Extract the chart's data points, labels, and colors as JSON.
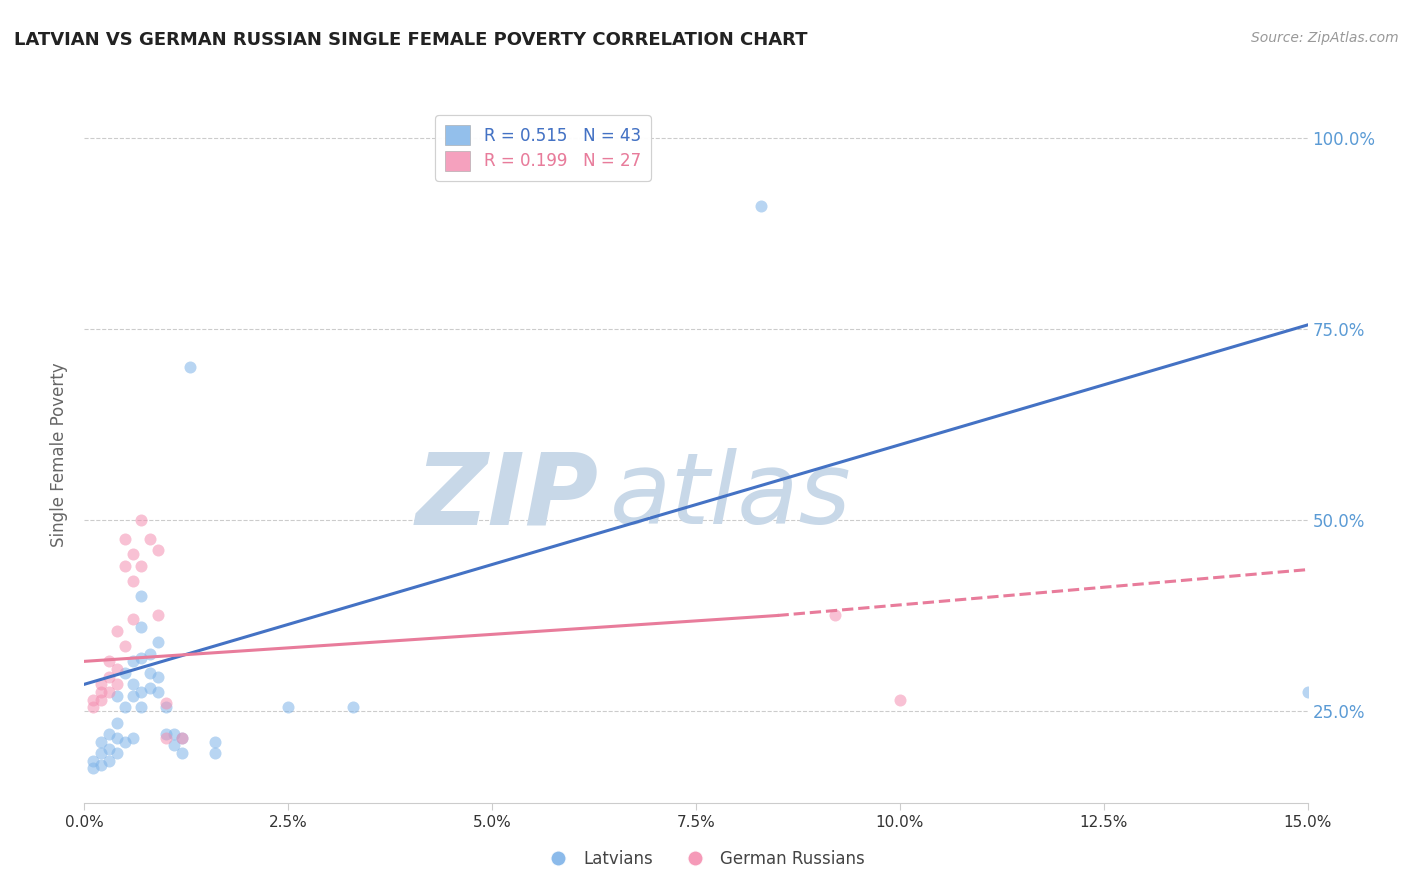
{
  "title": "LATVIAN VS GERMAN RUSSIAN SINGLE FEMALE POVERTY CORRELATION CHART",
  "source": "Source: ZipAtlas.com",
  "ylabel": "Single Female Poverty",
  "xlim": [
    0.0,
    0.15
  ],
  "ylim": [
    0.13,
    1.04
  ],
  "watermark_zip": "ZIP",
  "watermark_atlas": "atlas",
  "legend": {
    "latvian_R": "0.515",
    "latvian_N": "43",
    "german_russian_R": "0.199",
    "german_russian_N": "27"
  },
  "latvian_points": [
    [
      0.001,
      0.175
    ],
    [
      0.001,
      0.185
    ],
    [
      0.002,
      0.195
    ],
    [
      0.002,
      0.18
    ],
    [
      0.002,
      0.21
    ],
    [
      0.003,
      0.2
    ],
    [
      0.003,
      0.185
    ],
    [
      0.003,
      0.22
    ],
    [
      0.004,
      0.195
    ],
    [
      0.004,
      0.215
    ],
    [
      0.004,
      0.235
    ],
    [
      0.004,
      0.27
    ],
    [
      0.005,
      0.21
    ],
    [
      0.005,
      0.255
    ],
    [
      0.005,
      0.3
    ],
    [
      0.006,
      0.215
    ],
    [
      0.006,
      0.27
    ],
    [
      0.006,
      0.285
    ],
    [
      0.006,
      0.315
    ],
    [
      0.007,
      0.255
    ],
    [
      0.007,
      0.275
    ],
    [
      0.007,
      0.32
    ],
    [
      0.007,
      0.36
    ],
    [
      0.007,
      0.4
    ],
    [
      0.008,
      0.28
    ],
    [
      0.008,
      0.3
    ],
    [
      0.008,
      0.325
    ],
    [
      0.009,
      0.275
    ],
    [
      0.009,
      0.295
    ],
    [
      0.009,
      0.34
    ],
    [
      0.01,
      0.22
    ],
    [
      0.01,
      0.255
    ],
    [
      0.011,
      0.205
    ],
    [
      0.011,
      0.22
    ],
    [
      0.012,
      0.195
    ],
    [
      0.012,
      0.215
    ],
    [
      0.013,
      0.7
    ],
    [
      0.016,
      0.195
    ],
    [
      0.016,
      0.21
    ],
    [
      0.025,
      0.255
    ],
    [
      0.033,
      0.255
    ],
    [
      0.083,
      0.91
    ],
    [
      0.15,
      0.275
    ]
  ],
  "german_russian_points": [
    [
      0.001,
      0.255
    ],
    [
      0.001,
      0.265
    ],
    [
      0.002,
      0.265
    ],
    [
      0.002,
      0.275
    ],
    [
      0.002,
      0.285
    ],
    [
      0.003,
      0.275
    ],
    [
      0.003,
      0.295
    ],
    [
      0.003,
      0.315
    ],
    [
      0.004,
      0.285
    ],
    [
      0.004,
      0.305
    ],
    [
      0.004,
      0.355
    ],
    [
      0.005,
      0.335
    ],
    [
      0.005,
      0.44
    ],
    [
      0.005,
      0.475
    ],
    [
      0.006,
      0.37
    ],
    [
      0.006,
      0.42
    ],
    [
      0.006,
      0.455
    ],
    [
      0.007,
      0.44
    ],
    [
      0.007,
      0.5
    ],
    [
      0.008,
      0.475
    ],
    [
      0.009,
      0.375
    ],
    [
      0.009,
      0.46
    ],
    [
      0.01,
      0.215
    ],
    [
      0.01,
      0.26
    ],
    [
      0.012,
      0.215
    ],
    [
      0.092,
      0.375
    ],
    [
      0.1,
      0.265
    ]
  ],
  "latvian_line": {
    "x0": 0.0,
    "y0": 0.285,
    "x1": 0.15,
    "y1": 0.755
  },
  "german_russian_line_solid": {
    "x0": 0.0,
    "y0": 0.315,
    "x1": 0.085,
    "y1": 0.375
  },
  "german_russian_line_dash": {
    "x0": 0.085,
    "y0": 0.375,
    "x1": 0.15,
    "y1": 0.435
  },
  "colors": {
    "latvian": "#7EB3E8",
    "german_russian": "#F48FB1",
    "latvian_line": "#4472C4",
    "german_russian_line": "#E87C9B",
    "grid": "#CCCCCC",
    "watermark_zip": "#C8D8E8",
    "watermark_atlas": "#C8D8E8",
    "right_axis_labels": "#5B9BD5",
    "x_axis_labels": "#333333",
    "background": "#FFFFFF"
  },
  "marker_size": 75,
  "marker_alpha": 0.55,
  "line_width": 2.2,
  "x_tick_vals": [
    0.0,
    0.025,
    0.05,
    0.075,
    0.1,
    0.125,
    0.15
  ],
  "x_tick_labels": [
    "0.0%",
    "2.5%",
    "5.0%",
    "7.5%",
    "10.0%",
    "12.5%",
    "15.0%"
  ],
  "y_tick_vals": [
    0.25,
    0.5,
    0.75,
    1.0
  ],
  "y_tick_labels": [
    "25.0%",
    "50.0%",
    "75.0%",
    "100.0%"
  ]
}
